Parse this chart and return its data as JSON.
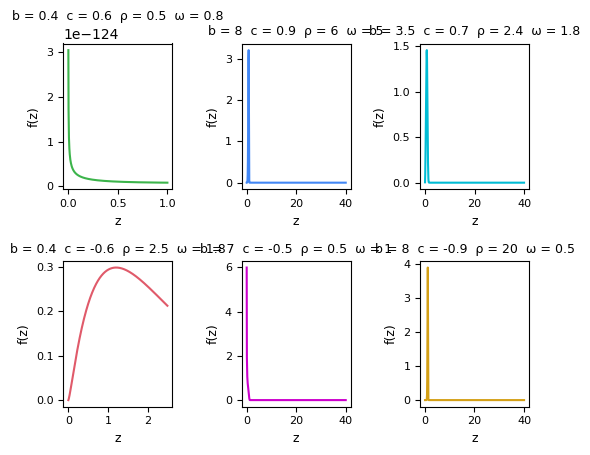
{
  "panels": [
    {
      "b": 0.4,
      "c": 0.6,
      "rho": 0.5,
      "omega": 0.8,
      "color": "#3cb44b",
      "xmin": 0.001,
      "xmax": 1.0,
      "title": "b = 0.4  c = 0.6  ρ = 0.5  ω = 0.8",
      "ylabel": "f(z)",
      "xlabel": "z"
    },
    {
      "b": 8,
      "c": 0.9,
      "rho": 6,
      "omega": 5,
      "color": "#4287f5",
      "xmin": 0.01,
      "xmax": 40.0,
      "title": "b = 8  c = 0.9  ρ = 6  ω = 5",
      "ylabel": "f(z)",
      "xlabel": "z"
    },
    {
      "b": 3.5,
      "c": 0.7,
      "rho": 2.4,
      "omega": 1.8,
      "color": "#00bcd4",
      "xmin": 0.01,
      "xmax": 40.0,
      "title": "b = 3.5  c = 0.7  ρ = 2.4  ω = 1.8",
      "ylabel": "f(z)",
      "xlabel": "z"
    },
    {
      "b": 0.4,
      "c": -0.6,
      "rho": 2.5,
      "omega": 1.8,
      "color": "#e05a6a",
      "xmin": 0.001,
      "xmax": 2.5,
      "title": "b = 0.4  c = -0.6  ρ = 2.5  ω = 1.8",
      "ylabel": "f(z)",
      "xlabel": "z"
    },
    {
      "b": 7,
      "c": -0.5,
      "rho": 0.5,
      "omega": 1,
      "color": "#cc00cc",
      "xmin": 0.01,
      "xmax": 40.0,
      "title": "b = 7  c = -0.5  ρ = 0.5  ω = 1",
      "ylabel": "f(z)",
      "xlabel": "z"
    },
    {
      "b": 8,
      "c": -0.9,
      "rho": 20,
      "omega": 0.5,
      "color": "#d4a017",
      "xmin": 0.1,
      "xmax": 40.0,
      "title": "b = 8  c = -0.9  ρ = 20  ω = 0.5",
      "ylabel": "f(z)",
      "xlabel": "z"
    }
  ],
  "background_color": "#ffffff",
  "title_fontsize": 9,
  "label_fontsize": 9,
  "tick_fontsize": 8,
  "npoints": 500
}
